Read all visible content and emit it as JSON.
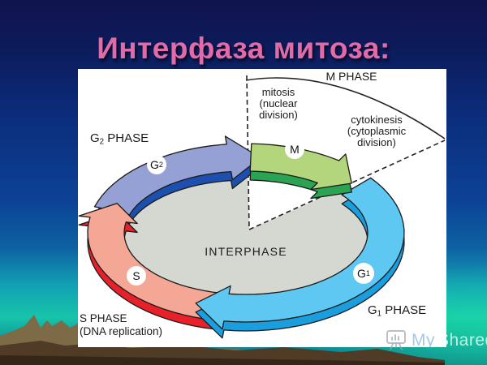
{
  "title": "Интерфаза митоза:",
  "diagram": {
    "labels": {
      "g2_phase": {
        "pre": "G",
        "sub": "2",
        "post": " PHASE"
      },
      "m_phase": "M PHASE",
      "g1_phase": {
        "pre": "G",
        "sub": "1",
        "post": " PHASE"
      },
      "s_phase": [
        "S PHASE",
        "(DNA replication)"
      ],
      "mitosis": [
        "mitosis",
        "(nuclear",
        "division)"
      ],
      "cytokinesis": [
        "cytokinesis",
        "(cytoplasmic",
        "division)"
      ],
      "interphase": "INTERPHASE"
    },
    "badges": {
      "g2": {
        "pre": "G",
        "sub": "2"
      },
      "m": "M",
      "g1": {
        "pre": "G",
        "sub": "1"
      },
      "s": "S"
    },
    "colors": {
      "g2_top": "#95a1d4",
      "g2_side": "#1c4fae",
      "m_top": "#b3d67c",
      "m_side": "#2aa353",
      "g1_top": "#5ec7f2",
      "g1_side": "#1b9ede",
      "s_top": "#f4a795",
      "s_side": "#e7202a",
      "interphase_fill": "#d4d8d1",
      "outline": "#1a1a1a",
      "title_color": "#df6ba8"
    }
  },
  "watermark": {
    "prefix": "My",
    "name": "Shared"
  }
}
